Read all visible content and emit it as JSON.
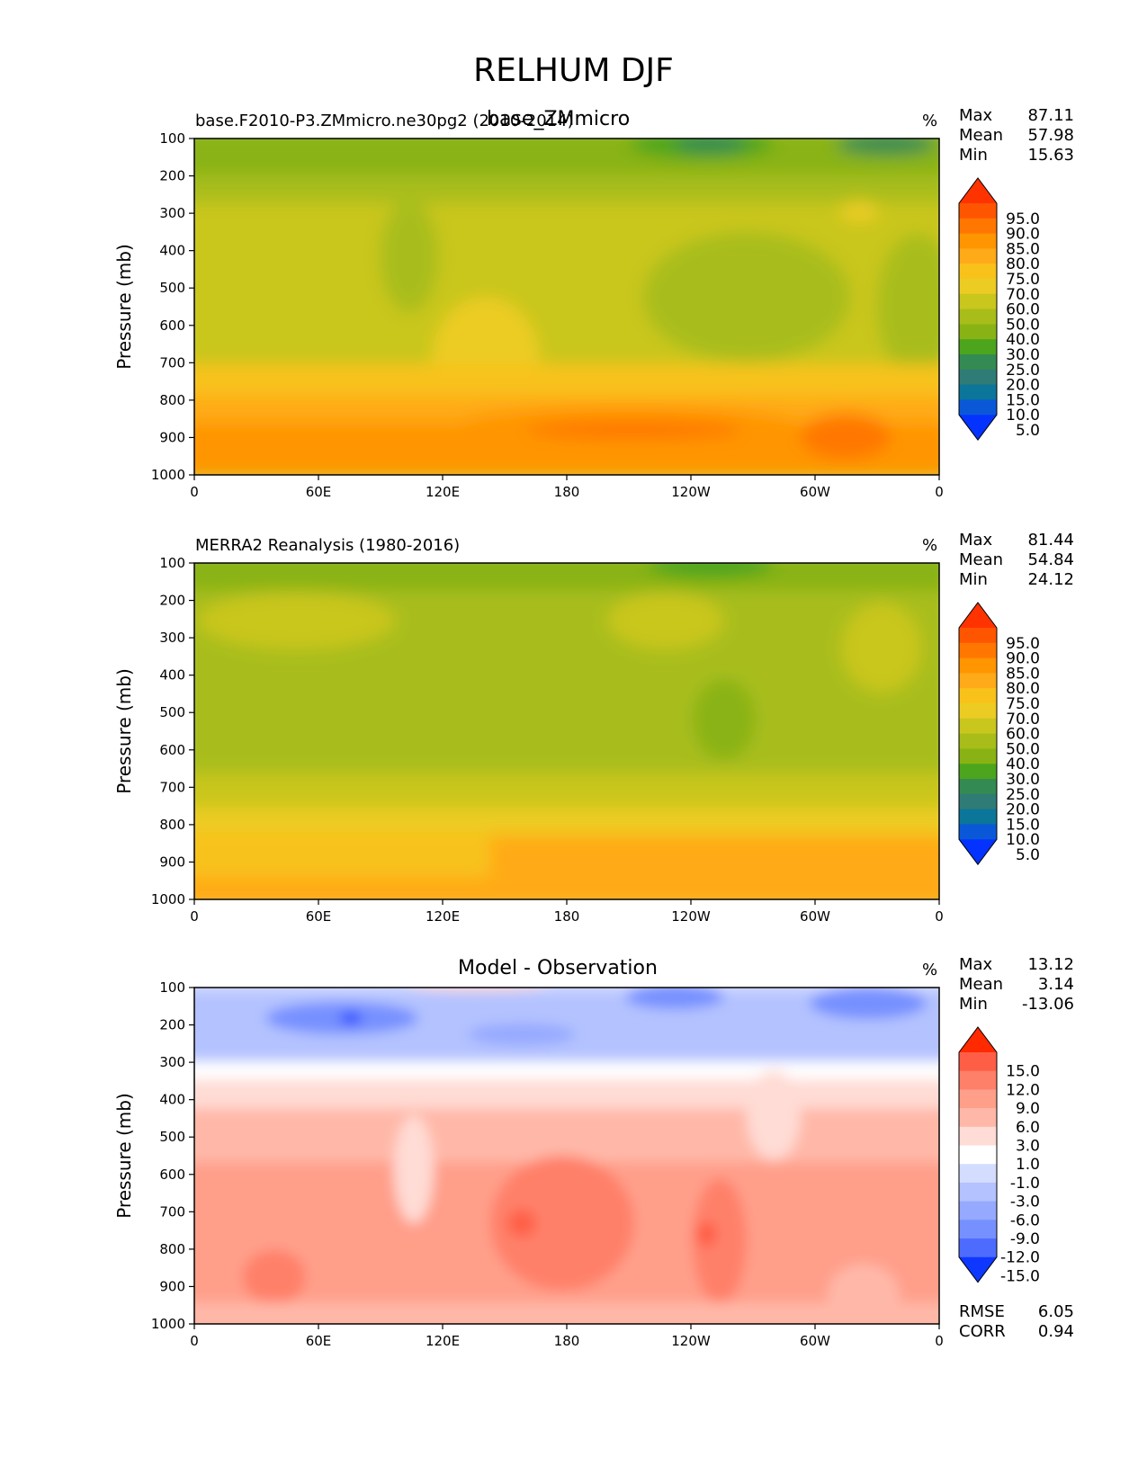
{
  "figure": {
    "title": "RELHUM DJF"
  },
  "chart_data": [
    {
      "type": "heatmap",
      "panel": "test",
      "center_title": "base_ZMmicro",
      "left_title": "base.F2010-P3.ZMmicro.ne30pg2 (2010-2014)",
      "units": "%",
      "ylabel": "Pressure (mb)",
      "xticks": [
        "0",
        "60E",
        "120E",
        "180",
        "120W",
        "60W",
        "0"
      ],
      "yticks": [
        "100",
        "200",
        "300",
        "400",
        "500",
        "600",
        "700",
        "800",
        "900",
        "1000"
      ],
      "ylim": [
        100,
        1000
      ],
      "xlim": [
        0,
        360
      ],
      "stats": [
        {
          "label": "Max",
          "value": "87.11"
        },
        {
          "label": "Mean",
          "value": "57.98"
        },
        {
          "label": "Min",
          "value": "15.63"
        }
      ],
      "colorbar": {
        "levels": [
          "95.0",
          "90.0",
          "85.0",
          "80.0",
          "75.0",
          "70.0",
          "60.0",
          "50.0",
          "40.0",
          "30.0",
          "25.0",
          "20.0",
          "15.0",
          "10.0",
          "5.0"
        ],
        "colors": [
          "#ff3300",
          "#ff5500",
          "#ff7700",
          "#ff9500",
          "#ffaa18",
          "#f8c21b",
          "#eccc23",
          "#c9c61e",
          "#a8bd1a",
          "#89b314",
          "#4ca51d",
          "#338a52",
          "#2f7c76",
          "#0b7699",
          "#0a58d8",
          "#0433ff"
        ],
        "extend": "both"
      }
    },
    {
      "type": "heatmap",
      "panel": "reference",
      "left_title": "MERRA2 Reanalysis (1980-2016)",
      "units": "%",
      "ylabel": "Pressure (mb)",
      "xticks": [
        "0",
        "60E",
        "120E",
        "180",
        "120W",
        "60W",
        "0"
      ],
      "yticks": [
        "100",
        "200",
        "300",
        "400",
        "500",
        "600",
        "700",
        "800",
        "900",
        "1000"
      ],
      "ylim": [
        100,
        1000
      ],
      "xlim": [
        0,
        360
      ],
      "stats": [
        {
          "label": "Max",
          "value": "81.44"
        },
        {
          "label": "Mean",
          "value": "54.84"
        },
        {
          "label": "Min",
          "value": "24.12"
        }
      ],
      "colorbar": {
        "levels": [
          "95.0",
          "90.0",
          "85.0",
          "80.0",
          "75.0",
          "70.0",
          "60.0",
          "50.0",
          "40.0",
          "30.0",
          "25.0",
          "20.0",
          "15.0",
          "10.0",
          "5.0"
        ],
        "colors": [
          "#ff3300",
          "#ff5500",
          "#ff7700",
          "#ff9500",
          "#ffaa18",
          "#f8c21b",
          "#eccc23",
          "#c9c61e",
          "#a8bd1a",
          "#89b314",
          "#4ca51d",
          "#338a52",
          "#2f7c76",
          "#0b7699",
          "#0a58d8",
          "#0433ff"
        ],
        "extend": "both"
      }
    },
    {
      "type": "heatmap",
      "panel": "difference",
      "center_title": "Model - Observation",
      "units": "%",
      "ylabel": "Pressure (mb)",
      "xticks": [
        "0",
        "60E",
        "120E",
        "180",
        "120W",
        "60W",
        "0"
      ],
      "yticks": [
        "100",
        "200",
        "300",
        "400",
        "500",
        "600",
        "700",
        "800",
        "900",
        "1000"
      ],
      "ylim": [
        100,
        1000
      ],
      "xlim": [
        0,
        360
      ],
      "stats": [
        {
          "label": "Max",
          "value": "13.12"
        },
        {
          "label": "Mean",
          "value": "3.14"
        },
        {
          "label": "Min",
          "value": "-13.06"
        }
      ],
      "metrics": [
        {
          "label": "RMSE",
          "value": "6.05"
        },
        {
          "label": "CORR",
          "value": "0.94"
        }
      ],
      "colorbar": {
        "levels": [
          "15.0",
          "12.0",
          "9.0",
          "6.0",
          "3.0",
          "1.0",
          "-1.0",
          "-3.0",
          "-6.0",
          "-9.0",
          "-12.0",
          "-15.0"
        ],
        "colors": [
          "#ff2a00",
          "#ff5e46",
          "#ff8069",
          "#ff9f8a",
          "#ffb8a8",
          "#ffdcd5",
          "#ffffff",
          "#d4dcff",
          "#b4c2ff",
          "#95a9ff",
          "#7690ff",
          "#4d6cff",
          "#0e38ff"
        ],
        "extend": "both"
      }
    }
  ]
}
